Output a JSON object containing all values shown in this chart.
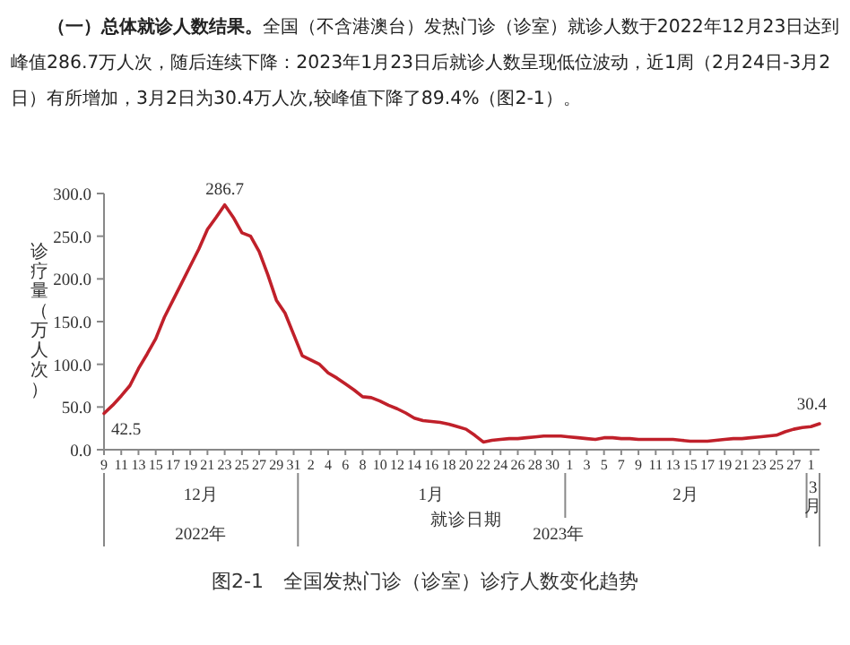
{
  "chart_data": {
    "type": "line",
    "title": "（一）总体就诊人数结果。",
    "subtitle": "全国（不含港澳台）发热门诊（诊室）就诊人数于2022年12月23日达到峰值286.7万人次，随后连续下降：2023年1月23日后就诊人数呈现低位波动，近1周（2月24日-3月2日）有所增加，3月2日为30.4万人次,较峰值下降了89.4%（图2-1）。",
    "ylabel": "诊疗量（万人次）",
    "xlabel": "就诊日期",
    "annotations": [
      "12月",
      "1月",
      "2月",
      "3月",
      "2022年",
      "2023年",
      "图2-1　全国发热门诊（诊室）诊疗人数变化趋势"
    ],
    "x": [
      "2022-12-09",
      "2022-12-10",
      "2022-12-11",
      "2022-12-12",
      "2022-12-13",
      "2022-12-14",
      "2022-12-15",
      "2022-12-16",
      "2022-12-17",
      "2022-12-18",
      "2022-12-19",
      "2022-12-20",
      "2022-12-21",
      "2022-12-22",
      "2022-12-23",
      "2022-12-24",
      "2022-12-25",
      "2022-12-26",
      "2022-12-27",
      "2022-12-28",
      "2022-12-29",
      "2022-12-30",
      "2022-12-31",
      "2023-01-01",
      "2023-01-02",
      "2023-01-03",
      "2023-01-04",
      "2023-01-05",
      "2023-01-06",
      "2023-01-07",
      "2023-01-08",
      "2023-01-09",
      "2023-01-10",
      "2023-01-11",
      "2023-01-12",
      "2023-01-13",
      "2023-01-14",
      "2023-01-15",
      "2023-01-16",
      "2023-01-17",
      "2023-01-18",
      "2023-01-19",
      "2023-01-20",
      "2023-01-21",
      "2023-01-22",
      "2023-01-23",
      "2023-01-24",
      "2023-01-25",
      "2023-01-26",
      "2023-01-27",
      "2023-01-28",
      "2023-01-29",
      "2023-01-30",
      "2023-01-31",
      "2023-02-01",
      "2023-02-02",
      "2023-02-03",
      "2023-02-04",
      "2023-02-05",
      "2023-02-06",
      "2023-02-07",
      "2023-02-08",
      "2023-02-09",
      "2023-02-10",
      "2023-02-11",
      "2023-02-12",
      "2023-02-13",
      "2023-02-14",
      "2023-02-15",
      "2023-02-16",
      "2023-02-17",
      "2023-02-18",
      "2023-02-19",
      "2023-02-20",
      "2023-02-21",
      "2023-02-22",
      "2023-02-23",
      "2023-02-24",
      "2023-02-25",
      "2023-02-26",
      "2023-02-27",
      "2023-02-28",
      "2023-03-01",
      "2023-03-02"
    ],
    "series": [
      {
        "color": "#c0202a",
        "values": [
          42.5,
          52,
          63,
          75,
          95,
          112,
          130,
          155,
          175,
          195,
          215,
          235,
          258,
          272,
          286.7,
          272,
          254,
          250,
          232,
          205,
          175,
          160,
          135,
          110,
          105,
          100,
          90,
          84,
          77,
          70,
          62,
          61,
          57,
          52,
          48,
          43,
          37,
          34,
          33,
          32,
          30,
          27,
          24,
          17,
          9,
          11,
          12,
          13,
          13,
          14,
          15,
          16,
          16,
          16,
          15,
          14,
          13,
          12,
          14,
          14,
          13,
          13,
          12,
          12,
          12,
          12,
          12,
          11,
          10,
          10,
          10,
          11,
          12,
          13,
          13,
          14,
          15,
          16,
          17,
          21,
          24,
          26,
          27,
          30.4
        ],
        "value_labels": [
          "42.5",
          null,
          null,
          null,
          null,
          null,
          null,
          null,
          null,
          null,
          null,
          null,
          null,
          null,
          "286.7",
          null,
          null,
          null,
          null,
          null,
          null,
          null,
          null,
          null,
          null,
          null,
          null,
          null,
          null,
          null,
          null,
          null,
          null,
          null,
          null,
          null,
          null,
          null,
          null,
          null,
          null,
          null,
          null,
          null,
          null,
          null,
          null,
          null,
          null,
          null,
          null,
          null,
          null,
          null,
          null,
          null,
          null,
          null,
          null,
          null,
          null,
          null,
          null,
          null,
          null,
          null,
          null,
          null,
          null,
          null,
          null,
          null,
          null,
          null,
          null,
          null,
          null,
          null,
          null,
          null,
          null,
          null,
          null,
          "30.4"
        ]
      }
    ],
    "xlim": [
      "2022-12-09",
      "2023-03-02"
    ],
    "ylim": [
      0,
      300
    ],
    "yticks": [
      {
        "value": 0,
        "label": "0.0"
      },
      {
        "value": 50,
        "label": "50.0"
      },
      {
        "value": 100,
        "label": "100.0"
      },
      {
        "value": 150,
        "label": "150.0"
      },
      {
        "value": 200,
        "label": "200.0"
      },
      {
        "value": 250,
        "label": "250.0"
      },
      {
        "value": 300,
        "label": "300.0"
      }
    ],
    "xticks": [
      {
        "value": "2022-12-09",
        "label": "9"
      },
      {
        "value": "2022-12-11",
        "label": "11"
      },
      {
        "value": "2022-12-13",
        "label": "13"
      },
      {
        "value": "2022-12-15",
        "label": "15"
      },
      {
        "value": "2022-12-17",
        "label": "17"
      },
      {
        "value": "2022-12-19",
        "label": "19"
      },
      {
        "value": "2022-12-21",
        "label": "21"
      },
      {
        "value": "2022-12-23",
        "label": "23"
      },
      {
        "value": "2022-12-25",
        "label": "25"
      },
      {
        "value": "2022-12-27",
        "label": "27"
      },
      {
        "value": "2022-12-29",
        "label": "29"
      },
      {
        "value": "2022-12-31",
        "label": "31"
      },
      {
        "value": "2023-01-02",
        "label": "2"
      },
      {
        "value": "2023-01-04",
        "label": "4"
      },
      {
        "value": "2023-01-06",
        "label": "6"
      },
      {
        "value": "2023-01-08",
        "label": "8"
      },
      {
        "value": "2023-01-10",
        "label": "10"
      },
      {
        "value": "2023-01-12",
        "label": "12"
      },
      {
        "value": "2023-01-14",
        "label": "14"
      },
      {
        "value": "2023-01-16",
        "label": "16"
      },
      {
        "value": "2023-01-18",
        "label": "18"
      },
      {
        "value": "2023-01-20",
        "label": "20"
      },
      {
        "value": "2023-01-22",
        "label": "22"
      },
      {
        "value": "2023-01-24",
        "label": "24"
      },
      {
        "value": "2023-01-26",
        "label": "26"
      },
      {
        "value": "2023-01-28",
        "label": "28"
      },
      {
        "value": "2023-01-30",
        "label": "30"
      },
      {
        "value": "2023-02-01",
        "label": "1"
      },
      {
        "value": "2023-02-03",
        "label": "3"
      },
      {
        "value": "2023-02-05",
        "label": "5"
      },
      {
        "value": "2023-02-07",
        "label": "7"
      },
      {
        "value": "2023-02-09",
        "label": "9"
      },
      {
        "value": "2023-02-11",
        "label": "11"
      },
      {
        "value": "2023-02-13",
        "label": "13"
      },
      {
        "value": "2023-02-15",
        "label": "15"
      },
      {
        "value": "2023-02-17",
        "label": "17"
      },
      {
        "value": "2023-02-19",
        "label": "19"
      },
      {
        "value": "2023-02-21",
        "label": "21"
      },
      {
        "value": "2023-02-23",
        "label": "23"
      },
      {
        "value": "2023-02-25",
        "label": "25"
      },
      {
        "value": "2023-02-27",
        "label": "27"
      },
      {
        "value": "2023-03-01",
        "label": "1"
      }
    ]
  }
}
